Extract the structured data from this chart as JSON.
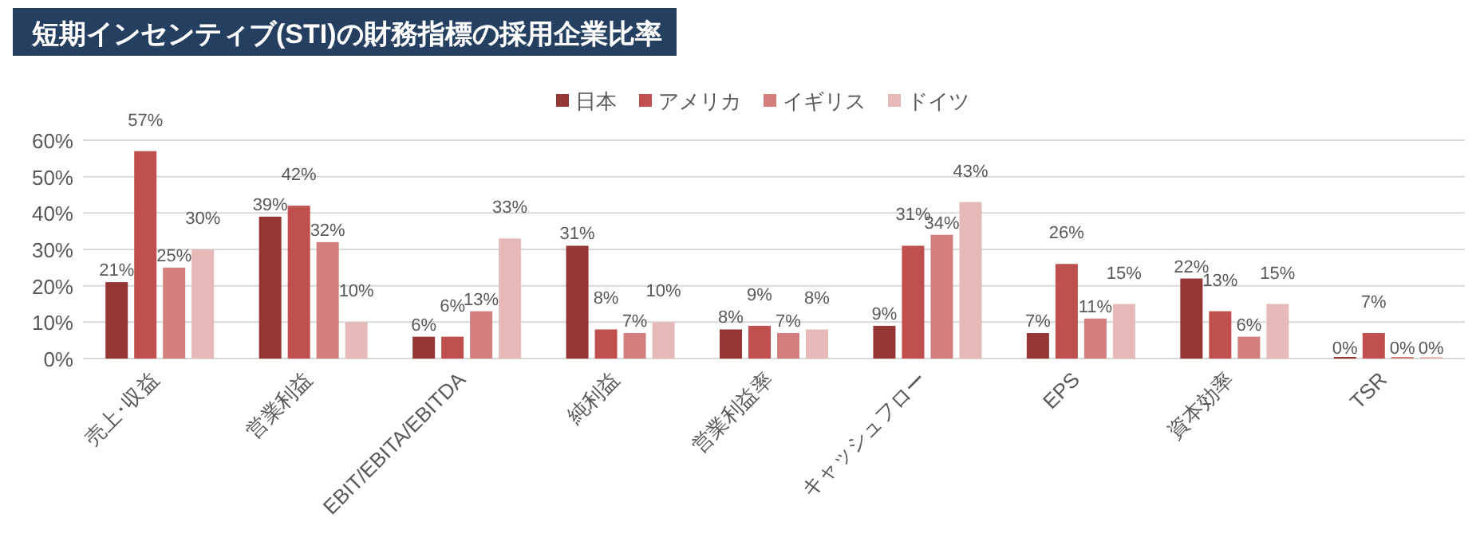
{
  "chart_data": {
    "type": "bar",
    "title": "短期インセンティブ(STI)の財務指標の採用企業比率",
    "categories": [
      "売上･収益",
      "営業利益",
      "EBIT/EBITA/EBITDA",
      "純利益",
      "営業利益率",
      "キャッシュフロー",
      "EPS",
      "資本効率",
      "TSR"
    ],
    "series": [
      {
        "name": "日本",
        "color": "#943634",
        "values": [
          21,
          39,
          6,
          31,
          8,
          9,
          7,
          22,
          0
        ],
        "value_labels": [
          "21%",
          "39%",
          "6%",
          "31%",
          "8%",
          "9%",
          "7%",
          "22%",
          "0%"
        ]
      },
      {
        "name": "アメリカ",
        "color": "#c0504d",
        "values": [
          57,
          42,
          6,
          8,
          9,
          31,
          26,
          13,
          7
        ],
        "value_labels": [
          "57%",
          "42%",
          "6%",
          "8%",
          "9%",
          "31%",
          "26%",
          "13%",
          "7%"
        ]
      },
      {
        "name": "イギリス",
        "color": "#d27f7d",
        "values": [
          25,
          32,
          13,
          7,
          7,
          34,
          11,
          6,
          0
        ],
        "value_labels": [
          "25%",
          "32%",
          "13%",
          "7%",
          "7%",
          "34%",
          "11%",
          "6%",
          "0%"
        ]
      },
      {
        "name": "ドイツ",
        "color": "#e6b9b8",
        "values": [
          30,
          10,
          33,
          10,
          8,
          43,
          15,
          15,
          0
        ],
        "value_labels": [
          "30%",
          "10%",
          "33%",
          "10%",
          "8%",
          "43%",
          "15%",
          "15%",
          "0%"
        ]
      }
    ],
    "ylim": [
      0,
      60
    ],
    "yticks": [
      {
        "value": 0,
        "label": "0%"
      },
      {
        "value": 10,
        "label": "10%"
      },
      {
        "value": 20,
        "label": "20%"
      },
      {
        "value": 30,
        "label": "30%"
      },
      {
        "value": 40,
        "label": "40%"
      },
      {
        "value": 50,
        "label": "50%"
      },
      {
        "value": 60,
        "label": "60%"
      }
    ],
    "grid": "y",
    "legend": "top"
  }
}
